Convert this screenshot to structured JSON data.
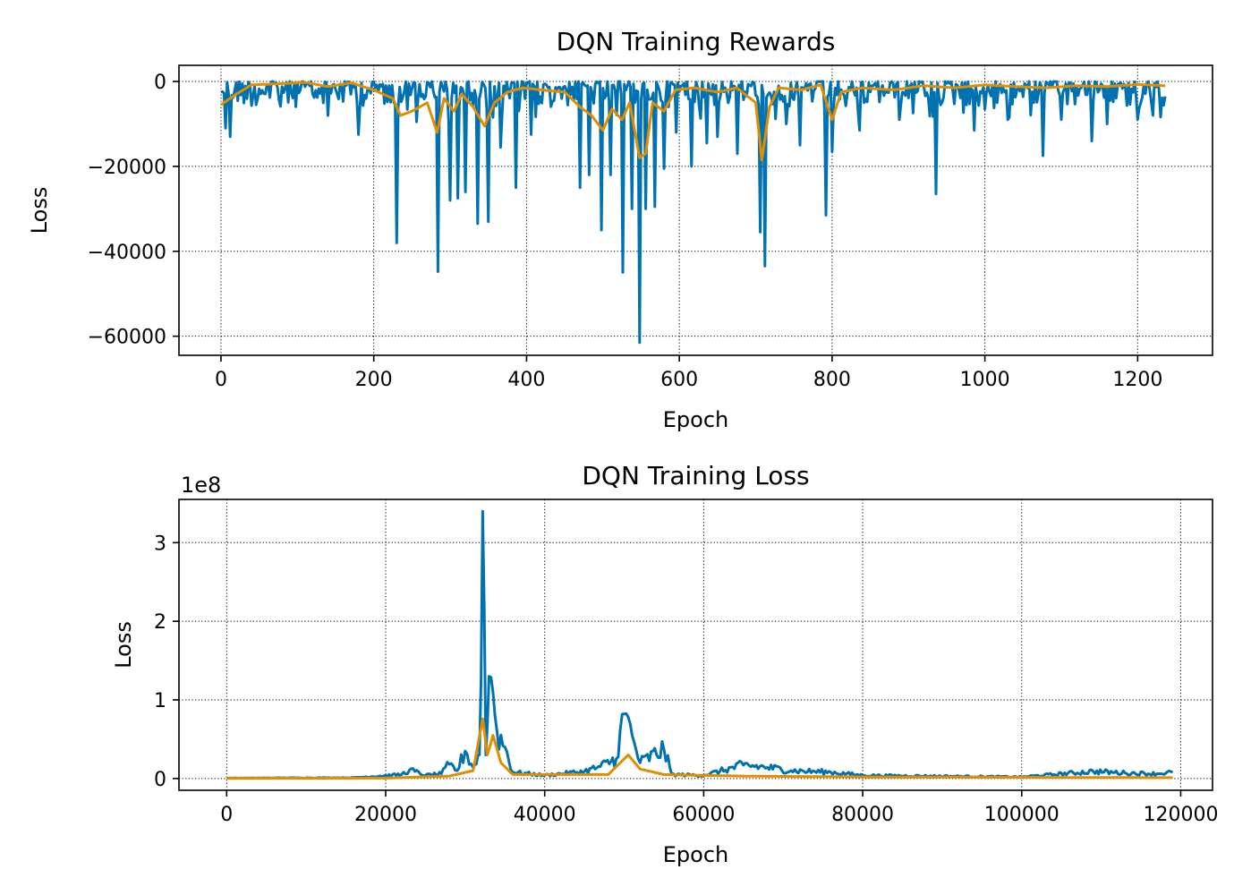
{
  "chart_data": [
    {
      "type": "line",
      "title": "DQN Training Rewards",
      "xlabel": "Epoch",
      "ylabel": "Loss",
      "xlim": [
        -55,
        1298
      ],
      "ylim": [
        -64500,
        3800
      ],
      "xticks": [
        0,
        200,
        400,
        600,
        800,
        1000,
        1200
      ],
      "xtick_labels": [
        "0",
        "200",
        "400",
        "600",
        "800",
        "1000",
        "1200"
      ],
      "yticks": [
        0,
        -20000,
        -40000,
        -60000
      ],
      "ytick_labels": [
        "0",
        "−20000",
        "−40000",
        "−60000"
      ],
      "grid": true,
      "series": [
        {
          "color": "#0072b2",
          "x_range": [
            0,
            1236
          ],
          "baseline": -1500,
          "spikes": [
            [
              5,
              -11000
            ],
            [
              12,
              -13000
            ],
            [
              45,
              -5500
            ],
            [
              140,
              -8000
            ],
            [
              180,
              -12500
            ],
            [
              230,
              -38000
            ],
            [
              255,
              -9500
            ],
            [
              283,
              -44800
            ],
            [
              300,
              -28000
            ],
            [
              310,
              -27500
            ],
            [
              320,
              -26000
            ],
            [
              335,
              -33500
            ],
            [
              350,
              -33000
            ],
            [
              365,
              -15500
            ],
            [
              385,
              -25000
            ],
            [
              405,
              -12500
            ],
            [
              470,
              -25000
            ],
            [
              482,
              -22000
            ],
            [
              498,
              -35000
            ],
            [
              510,
              -22000
            ],
            [
              525,
              -45000
            ],
            [
              538,
              -30000
            ],
            [
              548,
              -61500
            ],
            [
              555,
              -30000
            ],
            [
              568,
              -29500
            ],
            [
              580,
              -20500
            ],
            [
              595,
              -12000
            ],
            [
              615,
              -20000
            ],
            [
              635,
              -14500
            ],
            [
              650,
              -13000
            ],
            [
              675,
              -17000
            ],
            [
              705,
              -35500
            ],
            [
              712,
              -43500
            ],
            [
              740,
              -10000
            ],
            [
              757,
              -15000
            ],
            [
              792,
              -31500
            ],
            [
              800,
              -16500
            ],
            [
              835,
              -11500
            ],
            [
              888,
              -9000
            ],
            [
              935,
              -26500
            ],
            [
              985,
              -11500
            ],
            [
              1030,
              -9000
            ],
            [
              1075,
              -17500
            ],
            [
              1100,
              -9000
            ],
            [
              1140,
              -14000
            ],
            [
              1160,
              -10000
            ],
            [
              1200,
              -9000
            ],
            [
              1220,
              -8000
            ],
            [
              1235,
              -3500
            ]
          ]
        },
        {
          "color": "#e08d00",
          "values": [
            [
              0,
              -5500
            ],
            [
              20,
              -3000
            ],
            [
              40,
              -800
            ],
            [
              80,
              -500
            ],
            [
              110,
              -200
            ],
            [
              140,
              -1200
            ],
            [
              170,
              -300
            ],
            [
              200,
              -2000
            ],
            [
              225,
              -4000
            ],
            [
              235,
              -8000
            ],
            [
              250,
              -7000
            ],
            [
              270,
              -5000
            ],
            [
              283,
              -12000
            ],
            [
              292,
              -4000
            ],
            [
              305,
              -7000
            ],
            [
              315,
              -3000
            ],
            [
              330,
              -6000
            ],
            [
              345,
              -10500
            ],
            [
              358,
              -5000
            ],
            [
              375,
              -2500
            ],
            [
              395,
              -1500
            ],
            [
              420,
              -2000
            ],
            [
              450,
              -2500
            ],
            [
              470,
              -6000
            ],
            [
              485,
              -8000
            ],
            [
              500,
              -11500
            ],
            [
              512,
              -6500
            ],
            [
              525,
              -9000
            ],
            [
              535,
              -5000
            ],
            [
              548,
              -18000
            ],
            [
              556,
              -17000
            ],
            [
              565,
              -5000
            ],
            [
              580,
              -7000
            ],
            [
              595,
              -2000
            ],
            [
              620,
              -1500
            ],
            [
              650,
              -2500
            ],
            [
              675,
              -1500
            ],
            [
              700,
              -5000
            ],
            [
              708,
              -18500
            ],
            [
              718,
              -6000
            ],
            [
              730,
              -1500
            ],
            [
              760,
              -2000
            ],
            [
              785,
              -800
            ],
            [
              800,
              -9000
            ],
            [
              812,
              -2500
            ],
            [
              840,
              -1500
            ],
            [
              880,
              -2000
            ],
            [
              920,
              -1000
            ],
            [
              960,
              -1500
            ],
            [
              1000,
              -800
            ],
            [
              1040,
              -1200
            ],
            [
              1080,
              -1500
            ],
            [
              1120,
              -1000
            ],
            [
              1160,
              -1200
            ],
            [
              1200,
              -700
            ],
            [
              1236,
              -1000
            ]
          ]
        }
      ]
    },
    {
      "type": "line",
      "title": "DQN Training Loss",
      "xlabel": "Epoch",
      "ylabel": "Loss",
      "offset_text": "1e8",
      "xlim": [
        -6000,
        124000
      ],
      "ylim": [
        -15000000,
        355000000
      ],
      "xticks": [
        0,
        20000,
        40000,
        60000,
        80000,
        100000,
        120000
      ],
      "xtick_labels": [
        "0",
        "20000",
        "40000",
        "60000",
        "80000",
        "100000",
        "120000"
      ],
      "yticks": [
        0,
        100000000,
        200000000,
        300000000
      ],
      "ytick_labels": [
        "0",
        "1",
        "2",
        "3"
      ],
      "grid": true,
      "series": [
        {
          "color": "#0072b2",
          "values": [
            [
              0,
              500000
            ],
            [
              16000,
              1000000
            ],
            [
              22000,
              5000000
            ],
            [
              23000,
              11000000
            ],
            [
              25000,
              4000000
            ],
            [
              27000,
              6000000
            ],
            [
              28000,
              18000000
            ],
            [
              29000,
              10000000
            ],
            [
              30000,
              35000000
            ],
            [
              31000,
              14000000
            ],
            [
              31800,
              30000000
            ],
            [
              32200,
              340000000
            ],
            [
              32600,
              30000000
            ],
            [
              33000,
              130000000
            ],
            [
              33500,
              110000000
            ],
            [
              34000,
              60000000
            ],
            [
              35000,
              40000000
            ],
            [
              36000,
              8000000
            ],
            [
              40000,
              4000000
            ],
            [
              45000,
              9000000
            ],
            [
              47000,
              15000000
            ],
            [
              49000,
              25000000
            ],
            [
              50000,
              82000000
            ],
            [
              51000,
              55000000
            ],
            [
              52000,
              20000000
            ],
            [
              55000,
              37000000
            ],
            [
              56000,
              5000000
            ],
            [
              60000,
              4000000
            ],
            [
              65000,
              17000000
            ],
            [
              68000,
              14000000
            ],
            [
              71000,
              10000000
            ],
            [
              76000,
              8000000
            ],
            [
              80000,
              4000000
            ],
            [
              100000,
              2000000
            ],
            [
              109000,
              9000000
            ],
            [
              113000,
              7000000
            ],
            [
              117000,
              6000000
            ],
            [
              119000,
              8000000
            ]
          ]
        },
        {
          "color": "#e08d00",
          "values": [
            [
              0,
              300000
            ],
            [
              20000,
              500000
            ],
            [
              28000,
              3000000
            ],
            [
              31000,
              10000000
            ],
            [
              32200,
              76000000
            ],
            [
              32800,
              30000000
            ],
            [
              33500,
              55000000
            ],
            [
              34500,
              20000000
            ],
            [
              36000,
              5000000
            ],
            [
              48000,
              5000000
            ],
            [
              50500,
              30000000
            ],
            [
              52000,
              12000000
            ],
            [
              55000,
              5000000
            ],
            [
              65000,
              3000000
            ],
            [
              80000,
              2000000
            ],
            [
              119000,
              1000000
            ]
          ]
        }
      ]
    }
  ]
}
